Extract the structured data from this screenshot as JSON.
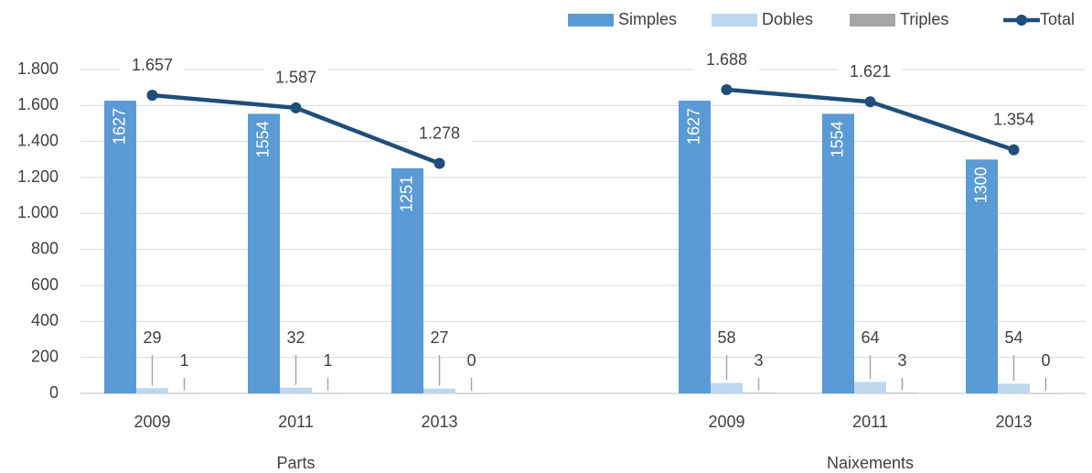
{
  "chart_data": {
    "type": "bar",
    "categories": [
      "2009",
      "2011",
      "2013",
      null,
      "2009",
      "2011",
      "2013"
    ],
    "groups": [
      {
        "name": "Parts",
        "categories": [
          0,
          1,
          2
        ]
      },
      {
        "name": "Naixements",
        "categories": [
          4,
          5,
          6
        ]
      }
    ],
    "series": [
      {
        "name": "Simples",
        "type": "bar",
        "color": "#5b9bd5",
        "values": [
          1627,
          1554,
          1251,
          null,
          1627,
          1554,
          1300
        ]
      },
      {
        "name": "Dobles",
        "type": "bar",
        "color": "#bdd7ee",
        "values": [
          29,
          32,
          27,
          null,
          58,
          64,
          54
        ]
      },
      {
        "name": "Triples",
        "type": "bar",
        "color": "#a5a5a5",
        "values": [
          1,
          1,
          0,
          null,
          3,
          3,
          0
        ]
      },
      {
        "name": "Total",
        "type": "line",
        "color": "#1f4e79",
        "values": [
          1657,
          1587,
          1278,
          null,
          1688,
          1621,
          1354
        ],
        "value_labels": [
          "1.657",
          "1.587",
          "1.278",
          null,
          "1.688",
          "1.621",
          "1.354"
        ]
      }
    ],
    "ylim": [
      0,
      1800
    ],
    "yticks": [
      0,
      200,
      400,
      600,
      800,
      {
        "value": 1000,
        "label": "1.000"
      },
      {
        "value": 1200,
        "label": "1.200"
      },
      {
        "value": 1400,
        "label": "1.400"
      },
      {
        "value": 1600,
        "label": "1.600"
      },
      {
        "value": 1800,
        "label": "1.800"
      }
    ],
    "grid": true,
    "legend": "top-right"
  }
}
